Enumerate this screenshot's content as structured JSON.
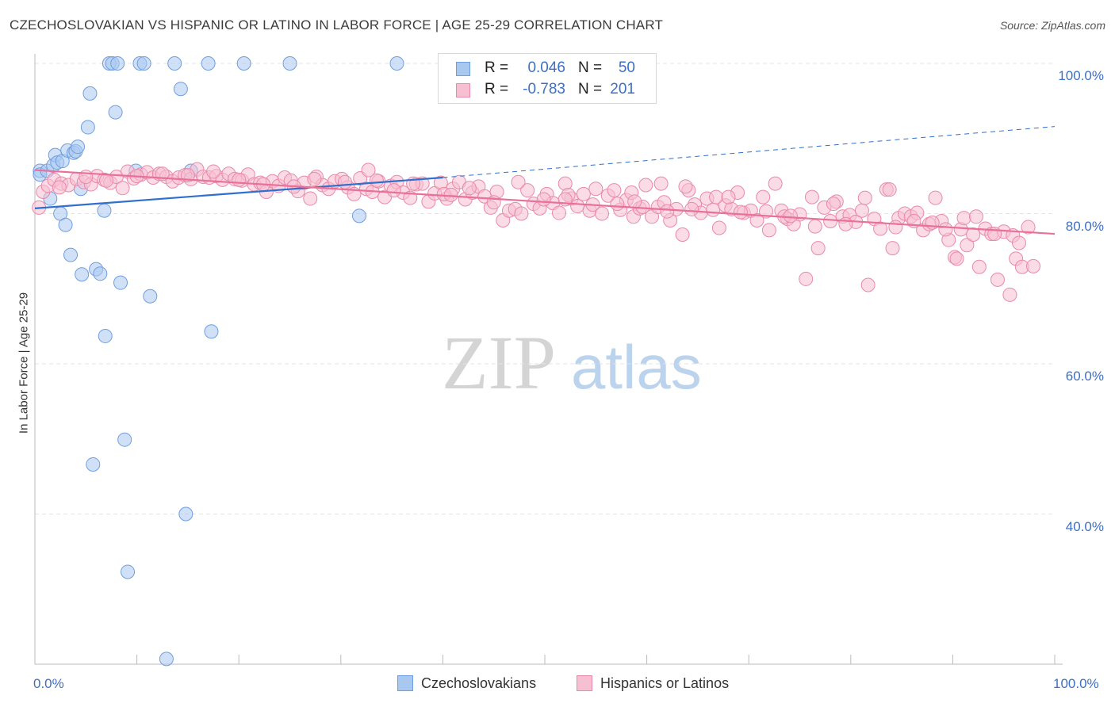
{
  "header": {
    "title": "CZECHOSLOVAKIAN VS HISPANIC OR LATINO IN LABOR FORCE | AGE 25-29 CORRELATION CHART",
    "source": "Source: ZipAtlas.com"
  },
  "watermark": {
    "zip": "ZIP",
    "atlas": "atlas"
  },
  "legend_top": [
    {
      "r_label": "R =",
      "r_value": "0.046",
      "n_label": "N =",
      "n_value": "50",
      "color": "#a9c8f0",
      "border": "#6f9ee0"
    },
    {
      "r_label": "R =",
      "r_value": "-0.783",
      "n_label": "N =",
      "n_value": "201",
      "color": "#f7c0d2",
      "border": "#e88aa8"
    }
  ],
  "legend_bottom": [
    {
      "label": "Czechoslovakians",
      "color": "#a9c8f0",
      "border": "#6f9ee0"
    },
    {
      "label": "Hispanics or Latinos",
      "color": "#f7c0d2",
      "border": "#e88aa8"
    }
  ],
  "chart_data": {
    "type": "scatter",
    "ylabel": "In Labor Force | Age 25-29",
    "xlim": [
      0,
      100
    ],
    "ylim": [
      20,
      100
    ],
    "x_tick_labels": [
      "0.0%",
      "100.0%"
    ],
    "y_ticks": [
      {
        "value": 100,
        "label": "100.0%"
      },
      {
        "value": 80,
        "label": "80.0%"
      },
      {
        "value": 60,
        "label": "60.0%"
      },
      {
        "value": 40,
        "label": "40.0%"
      }
    ],
    "grid": true,
    "legend_position": "top-center",
    "series": [
      {
        "name": "Czechoslovakians",
        "color": "#a9c8f0",
        "stroke": "#6f9ee0",
        "line_color": "#2f6fd0",
        "trend": {
          "x": [
            0,
            40
          ],
          "y": [
            80.7,
            84.8
          ]
        },
        "trend_dashed": {
          "x": [
            40,
            100
          ],
          "y": [
            84.8,
            91.6
          ]
        },
        "points": [
          [
            0.5,
            85.7
          ],
          [
            0.5,
            85.2
          ],
          [
            1.2,
            85.7
          ],
          [
            1.5,
            82.0
          ],
          [
            1.8,
            86.4
          ],
          [
            2.0,
            87.8
          ],
          [
            2.2,
            86.8
          ],
          [
            2.5,
            80.0
          ],
          [
            2.7,
            87.0
          ],
          [
            3.0,
            78.5
          ],
          [
            3.2,
            88.4
          ],
          [
            3.5,
            74.5
          ],
          [
            3.8,
            88.1
          ],
          [
            4.0,
            88.3
          ],
          [
            4.2,
            88.9
          ],
          [
            4.5,
            83.3
          ],
          [
            4.6,
            71.9
          ],
          [
            5.2,
            91.5
          ],
          [
            5.4,
            96.0
          ],
          [
            5.7,
            46.6
          ],
          [
            6.0,
            72.6
          ],
          [
            6.4,
            72.0
          ],
          [
            6.8,
            80.4
          ],
          [
            6.9,
            63.7
          ],
          [
            7.3,
            100.0
          ],
          [
            7.6,
            100.0
          ],
          [
            7.9,
            93.5
          ],
          [
            8.1,
            100.0
          ],
          [
            8.4,
            70.8
          ],
          [
            8.8,
            49.9
          ],
          [
            9.1,
            32.3
          ],
          [
            9.9,
            85.7
          ],
          [
            10.3,
            100.0
          ],
          [
            10.7,
            100.0
          ],
          [
            11.3,
            69.0
          ],
          [
            12.9,
            20.7
          ],
          [
            13.7,
            100.0
          ],
          [
            14.3,
            96.6
          ],
          [
            14.8,
            40.0
          ],
          [
            15.3,
            85.7
          ],
          [
            17.0,
            100.0
          ],
          [
            17.3,
            64.3
          ],
          [
            20.5,
            100.0
          ],
          [
            25.0,
            100.0
          ],
          [
            31.8,
            79.7
          ],
          [
            35.5,
            100.0
          ]
        ]
      },
      {
        "name": "Hispanics or Latinos",
        "color": "#f7c0d2",
        "stroke": "#e88aa8",
        "line_color": "#e8709a",
        "trend": {
          "x": [
            0,
            100
          ],
          "y": [
            85.8,
            77.3
          ]
        },
        "points": [
          [
            0.4,
            80.8
          ],
          [
            0.8,
            82.9
          ],
          [
            1.3,
            83.7
          ],
          [
            1.9,
            84.5
          ],
          [
            2.6,
            84.0
          ],
          [
            3.3,
            83.8
          ],
          [
            4.1,
            84.6
          ],
          [
            4.8,
            84.2
          ],
          [
            5.5,
            83.9
          ],
          [
            6.1,
            85.0
          ],
          [
            6.8,
            84.5
          ],
          [
            7.4,
            84.1
          ],
          [
            8.0,
            84.9
          ],
          [
            8.6,
            83.4
          ],
          [
            9.1,
            85.6
          ],
          [
            9.7,
            84.7
          ],
          [
            10.4,
            85.2
          ],
          [
            11.0,
            85.5
          ],
          [
            11.6,
            84.8
          ],
          [
            12.2,
            85.3
          ],
          [
            12.9,
            84.9
          ],
          [
            13.5,
            84.3
          ],
          [
            14.1,
            84.8
          ],
          [
            14.7,
            85.1
          ],
          [
            15.3,
            84.6
          ],
          [
            15.9,
            85.9
          ],
          [
            16.5,
            84.9
          ],
          [
            17.1,
            84.8
          ],
          [
            17.8,
            85.0
          ],
          [
            18.4,
            84.5
          ],
          [
            19.0,
            85.3
          ],
          [
            19.6,
            84.6
          ],
          [
            20.3,
            84.4
          ],
          [
            20.9,
            85.2
          ],
          [
            21.5,
            83.9
          ],
          [
            22.1,
            84.1
          ],
          [
            22.7,
            82.9
          ],
          [
            23.3,
            84.3
          ],
          [
            23.9,
            83.7
          ],
          [
            24.5,
            84.8
          ],
          [
            25.1,
            84.4
          ],
          [
            25.8,
            83.0
          ],
          [
            26.4,
            84.1
          ],
          [
            27.0,
            82.0
          ],
          [
            27.6,
            84.9
          ],
          [
            28.2,
            83.8
          ],
          [
            28.8,
            83.3
          ],
          [
            29.4,
            84.3
          ],
          [
            30.1,
            84.6
          ],
          [
            30.7,
            83.5
          ],
          [
            31.3,
            82.6
          ],
          [
            31.9,
            84.7
          ],
          [
            32.5,
            83.3
          ],
          [
            33.1,
            82.9
          ],
          [
            33.7,
            84.3
          ],
          [
            34.3,
            82.2
          ],
          [
            34.9,
            83.7
          ],
          [
            35.5,
            84.2
          ],
          [
            36.1,
            82.8
          ],
          [
            36.8,
            82.1
          ],
          [
            37.4,
            83.9
          ],
          [
            38.0,
            84.0
          ],
          [
            38.6,
            81.6
          ],
          [
            39.2,
            82.7
          ],
          [
            39.8,
            84.1
          ],
          [
            40.4,
            82.0
          ],
          [
            41.0,
            83.3
          ],
          [
            41.6,
            84.2
          ],
          [
            42.2,
            81.9
          ],
          [
            42.9,
            82.8
          ],
          [
            43.5,
            83.6
          ],
          [
            44.1,
            82.3
          ],
          [
            44.7,
            80.8
          ],
          [
            45.3,
            82.9
          ],
          [
            45.9,
            79.1
          ],
          [
            46.5,
            80.4
          ],
          [
            47.1,
            80.6
          ],
          [
            47.7,
            80.0
          ],
          [
            48.3,
            83.1
          ],
          [
            48.9,
            81.3
          ],
          [
            49.5,
            80.7
          ],
          [
            50.2,
            82.6
          ],
          [
            50.8,
            81.4
          ],
          [
            51.4,
            80.1
          ],
          [
            52.0,
            84.0
          ],
          [
            52.6,
            82.0
          ],
          [
            53.2,
            81.0
          ],
          [
            53.8,
            82.6
          ],
          [
            54.4,
            80.4
          ],
          [
            55.0,
            83.3
          ],
          [
            55.6,
            80.0
          ],
          [
            56.2,
            82.4
          ],
          [
            56.8,
            83.1
          ],
          [
            57.4,
            80.5
          ],
          [
            58.0,
            81.8
          ],
          [
            58.7,
            79.6
          ],
          [
            59.3,
            80.7
          ],
          [
            59.9,
            83.8
          ],
          [
            60.5,
            79.6
          ],
          [
            61.1,
            80.9
          ],
          [
            61.7,
            81.5
          ],
          [
            62.3,
            79.1
          ],
          [
            62.9,
            80.6
          ],
          [
            63.5,
            77.2
          ],
          [
            64.1,
            83.1
          ],
          [
            64.7,
            81.2
          ],
          [
            65.3,
            80.1
          ],
          [
            65.9,
            82.0
          ],
          [
            66.5,
            80.5
          ],
          [
            67.1,
            78.1
          ],
          [
            67.7,
            81.1
          ],
          [
            68.3,
            80.6
          ],
          [
            68.9,
            82.8
          ],
          [
            69.5,
            80.1
          ],
          [
            70.2,
            80.4
          ],
          [
            70.8,
            79.1
          ],
          [
            71.4,
            82.2
          ],
          [
            72.0,
            77.8
          ],
          [
            72.6,
            84.0
          ],
          [
            73.2,
            80.4
          ],
          [
            73.8,
            79.3
          ],
          [
            74.4,
            78.6
          ],
          [
            75.0,
            79.9
          ],
          [
            75.6,
            71.3
          ],
          [
            76.2,
            82.2
          ],
          [
            76.8,
            75.4
          ],
          [
            77.4,
            80.8
          ],
          [
            78.0,
            79.0
          ],
          [
            78.6,
            81.6
          ],
          [
            79.2,
            79.6
          ],
          [
            79.9,
            79.8
          ],
          [
            80.5,
            78.9
          ],
          [
            81.1,
            80.4
          ],
          [
            81.7,
            70.5
          ],
          [
            82.3,
            79.3
          ],
          [
            82.9,
            78.0
          ],
          [
            83.5,
            83.2
          ],
          [
            84.1,
            75.4
          ],
          [
            84.7,
            79.4
          ],
          [
            85.3,
            80.0
          ],
          [
            85.9,
            79.6
          ],
          [
            86.5,
            80.1
          ],
          [
            87.1,
            77.8
          ],
          [
            87.7,
            78.6
          ],
          [
            88.3,
            82.1
          ],
          [
            88.9,
            79.0
          ],
          [
            89.6,
            76.5
          ],
          [
            90.2,
            74.2
          ],
          [
            90.8,
            77.9
          ],
          [
            91.4,
            75.8
          ],
          [
            92.0,
            77.2
          ],
          [
            92.6,
            72.9
          ],
          [
            93.2,
            78.0
          ],
          [
            93.8,
            77.3
          ],
          [
            94.4,
            71.2
          ],
          [
            95.0,
            77.6
          ],
          [
            95.6,
            69.2
          ],
          [
            96.2,
            74.0
          ],
          [
            96.8,
            72.9
          ],
          [
            97.4,
            78.2
          ],
          [
            2.4,
            83.5
          ],
          [
            7.0,
            84.4
          ],
          [
            12.5,
            85.3
          ],
          [
            17.5,
            85.6
          ],
          [
            22.4,
            83.9
          ],
          [
            27.4,
            84.6
          ],
          [
            32.7,
            85.8
          ],
          [
            37.1,
            84.0
          ],
          [
            42.6,
            83.4
          ],
          [
            47.4,
            84.2
          ],
          [
            52.3,
            82.5
          ],
          [
            57.1,
            81.3
          ],
          [
            62.0,
            80.3
          ],
          [
            66.8,
            82.2
          ],
          [
            71.7,
            80.3
          ],
          [
            76.5,
            78.3
          ],
          [
            81.4,
            82.1
          ],
          [
            86.2,
            79.0
          ],
          [
            91.1,
            79.4
          ],
          [
            95.9,
            77.1
          ],
          [
            33.5,
            84.4
          ],
          [
            58.5,
            82.8
          ],
          [
            63.8,
            83.6
          ],
          [
            68.0,
            82.2
          ],
          [
            73.5,
            79.6
          ],
          [
            78.3,
            81.3
          ],
          [
            83.8,
            83.2
          ],
          [
            88.0,
            78.8
          ],
          [
            92.3,
            79.6
          ],
          [
            96.5,
            76.1
          ],
          [
            5.0,
            84.9
          ],
          [
            10.0,
            85.0
          ],
          [
            15.0,
            85.1
          ],
          [
            20.0,
            84.5
          ],
          [
            25.4,
            83.6
          ],
          [
            30.4,
            84.2
          ],
          [
            35.2,
            83.1
          ],
          [
            40.1,
            82.6
          ],
          [
            45.0,
            81.5
          ],
          [
            49.9,
            81.9
          ],
          [
            54.7,
            81.2
          ],
          [
            59.6,
            80.9
          ],
          [
            64.4,
            80.6
          ],
          [
            69.2,
            80.2
          ],
          [
            74.1,
            79.7
          ],
          [
            79.5,
            78.6
          ],
          [
            84.4,
            78.2
          ],
          [
            89.3,
            77.9
          ],
          [
            94.1,
            77.3
          ],
          [
            97.9,
            73.0
          ],
          [
            58.8,
            81.6
          ],
          [
            40.8,
            82.5
          ],
          [
            61.4,
            84.0
          ],
          [
            52.0,
            81.9
          ],
          [
            90.4,
            74.0
          ]
        ]
      }
    ]
  }
}
